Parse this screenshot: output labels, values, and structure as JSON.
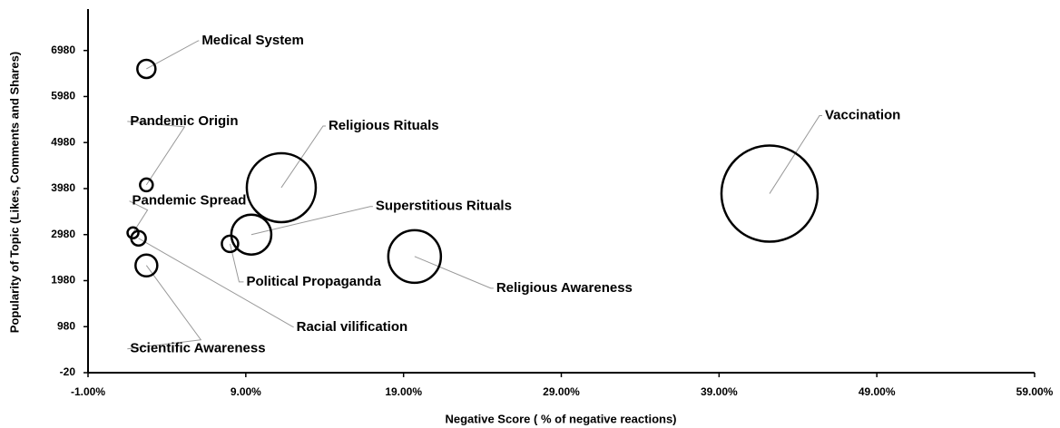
{
  "chart_data": {
    "type": "bubble",
    "x_label": "Negative Score ( % of negative reactions)",
    "y_label": "Popularity of Topic (Likes, Comments and Shares)",
    "xlim": [
      -1,
      59
    ],
    "xticks": [
      {
        "value": -1,
        "label": "-1.00%"
      },
      {
        "value": 9,
        "label": "9.00%"
      },
      {
        "value": 19,
        "label": "19.00%"
      },
      {
        "value": 29,
        "label": "29.00%"
      },
      {
        "value": 39,
        "label": "39.00%"
      },
      {
        "value": 49,
        "label": "49.00%"
      },
      {
        "value": 59,
        "label": "59.00%"
      }
    ],
    "ylim": [
      -20,
      7880
    ],
    "yticks": [
      -20,
      980,
      1980,
      2980,
      3980,
      4980,
      5980,
      6980
    ],
    "color": "#000000",
    "points": [
      {
        "name": "Medical System",
        "x": 2.7,
        "y": 6580,
        "size": 100
      },
      {
        "name": "Pandemic Origin",
        "x": 2.7,
        "y": 4060,
        "size": 49
      },
      {
        "name": "Pandemic Spread",
        "x": 1.85,
        "y": 3020,
        "size": 36
      },
      {
        "name": "Racial vilification",
        "x": 2.2,
        "y": 2900,
        "size": 64
      },
      {
        "name": "Scientific Awareness",
        "x": 2.7,
        "y": 2310,
        "size": 144
      },
      {
        "name": "Political Propaganda",
        "x": 8.0,
        "y": 2780,
        "size": 81
      },
      {
        "name": "Superstitious Rituals",
        "x": 9.35,
        "y": 2980,
        "size": 484
      },
      {
        "name": "Religious Rituals",
        "x": 11.25,
        "y": 4000,
        "size": 1444
      },
      {
        "name": "Religious Awareness",
        "x": 19.7,
        "y": 2505,
        "size": 841
      },
      {
        "name": "Vaccination",
        "x": 42.2,
        "y": 3870,
        "size": 2809
      }
    ]
  }
}
